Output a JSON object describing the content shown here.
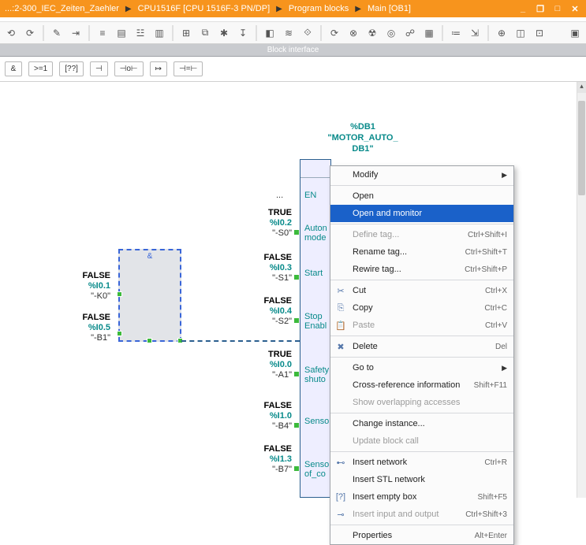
{
  "title": {
    "crumbs": [
      "...:2-300_IEC_Zeiten_Zaehler",
      "CPU1516F [CPU 1516F-3 PN/DP]",
      "Program blocks",
      "Main [OB1]"
    ]
  },
  "toolbar": {
    "icons": [
      "⟲",
      "⟳",
      "✎",
      "⇥",
      "≡",
      "▤",
      "☳",
      "▥",
      "⊞",
      "⧉",
      "✱",
      "↧",
      "◧",
      "≋",
      "⟐",
      "⟳",
      "⊗",
      "☢",
      "◎",
      "☍",
      "▦",
      "≔",
      "⇲",
      "⊕",
      "◫",
      "⊡"
    ]
  },
  "block_interface_label": "Block interface",
  "palette": [
    "&",
    ">=1",
    "[??]",
    "⊣",
    "⊣o⊢",
    "↦",
    "⊣=⊢"
  ],
  "fb": {
    "db_label": "%DB1",
    "name1": "\"MOTOR_AUTO_",
    "name2": "DB1\"",
    "en_label": "EN",
    "ports": [
      {
        "state": "TRUE",
        "addr": "%I0.2",
        "name": "\"-S0\"",
        "label": "Auton\nmode"
      },
      {
        "state": "FALSE",
        "addr": "%I0.3",
        "name": "\"-S1\"",
        "label": "Start"
      },
      {
        "state": "FALSE",
        "addr": "%I0.4",
        "name": "\"-S2\"",
        "label": "Stop\nEnabl"
      },
      {
        "state": "TRUE",
        "addr": "%I0.0",
        "name": "\"-A1\"",
        "label": "Safety\nshuto"
      },
      {
        "state": "FALSE",
        "addr": "%I1.0",
        "name": "\"-B4\"",
        "label": "Senso"
      },
      {
        "state": "FALSE",
        "addr": "%I1.3",
        "name": "\"-B7\"",
        "label": "Senso\nof_co"
      }
    ]
  },
  "andbox": {
    "label": "&",
    "left_tags": [
      {
        "state": "FALSE",
        "addr": "%I0.1",
        "name": "\"-K0\""
      },
      {
        "state": "FALSE",
        "addr": "%I0.5",
        "name": "\"-B1\""
      }
    ]
  },
  "dots": "...",
  "context_menu": [
    {
      "type": "item",
      "label": "Modify",
      "arrow": true
    },
    {
      "type": "sep"
    },
    {
      "type": "item",
      "label": "Open"
    },
    {
      "type": "item",
      "label": "Open and monitor",
      "selected": true
    },
    {
      "type": "sep"
    },
    {
      "type": "item",
      "label": "Define tag...",
      "shortcut": "Ctrl+Shift+I",
      "disabled": true
    },
    {
      "type": "item",
      "label": "Rename tag...",
      "shortcut": "Ctrl+Shift+T"
    },
    {
      "type": "item",
      "label": "Rewire tag...",
      "shortcut": "Ctrl+Shift+P"
    },
    {
      "type": "sep"
    },
    {
      "type": "item",
      "label": "Cut",
      "shortcut": "Ctrl+X",
      "icon": "✂"
    },
    {
      "type": "item",
      "label": "Copy",
      "shortcut": "Ctrl+C",
      "icon": "⎘"
    },
    {
      "type": "item",
      "label": "Paste",
      "shortcut": "Ctrl+V",
      "icon": "📋",
      "disabled": true
    },
    {
      "type": "sep"
    },
    {
      "type": "item",
      "label": "Delete",
      "shortcut": "Del",
      "icon": "✖"
    },
    {
      "type": "sep"
    },
    {
      "type": "item",
      "label": "Go to",
      "arrow": true
    },
    {
      "type": "item",
      "label": "Cross-reference information",
      "shortcut": "Shift+F11"
    },
    {
      "type": "item",
      "label": "Show overlapping accesses",
      "disabled": true
    },
    {
      "type": "sep"
    },
    {
      "type": "item",
      "label": "Change instance..."
    },
    {
      "type": "item",
      "label": "Update block call",
      "disabled": true
    },
    {
      "type": "sep"
    },
    {
      "type": "item",
      "label": "Insert network",
      "shortcut": "Ctrl+R",
      "icon": "⊷"
    },
    {
      "type": "item",
      "label": "Insert STL network"
    },
    {
      "type": "item",
      "label": "Insert empty box",
      "shortcut": "Shift+F5",
      "icon": "[?]"
    },
    {
      "type": "item",
      "label": "Insert input and output",
      "shortcut": "Ctrl+Shift+3",
      "icon": "⊸",
      "disabled": true
    },
    {
      "type": "sep"
    },
    {
      "type": "item",
      "label": "Properties",
      "shortcut": "Alt+Enter"
    }
  ]
}
